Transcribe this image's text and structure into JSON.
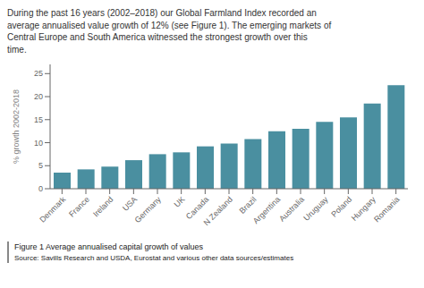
{
  "chart_data": {
    "type": "bar",
    "subtitle": "During the past 16 years (2002–2018) our Global Farmland Index recorded an\naverage annualised value growth of 12% (see Figure 1). The emerging markets of\nCentral Europe and South America witnessed the strongest growth over this\ntime.",
    "categories": [
      "Denmark",
      "France",
      "Ireland",
      "USA",
      "Germany",
      "UK",
      "Canada",
      "N Zealand",
      "Brazil",
      "Argentina",
      "Australia",
      "Uruguay",
      "Poland",
      "Hungary",
      "Romania"
    ],
    "values": [
      3.5,
      4.2,
      4.8,
      6.2,
      7.5,
      7.9,
      9.2,
      9.8,
      10.8,
      12.5,
      13.0,
      14.5,
      15.5,
      18.5,
      22.5
    ],
    "color": "#4a8fa0",
    "ylabel": "% growth 2002-2018",
    "ylim": [
      0,
      27
    ],
    "yticks": [
      0,
      5,
      10,
      15,
      20,
      25
    ],
    "grid": false,
    "annotations": [
      "Figure 1 Average annualised capital growth of values",
      "Source: Savills Research and USDA, Eurostat and various other data sources/estimates"
    ]
  }
}
